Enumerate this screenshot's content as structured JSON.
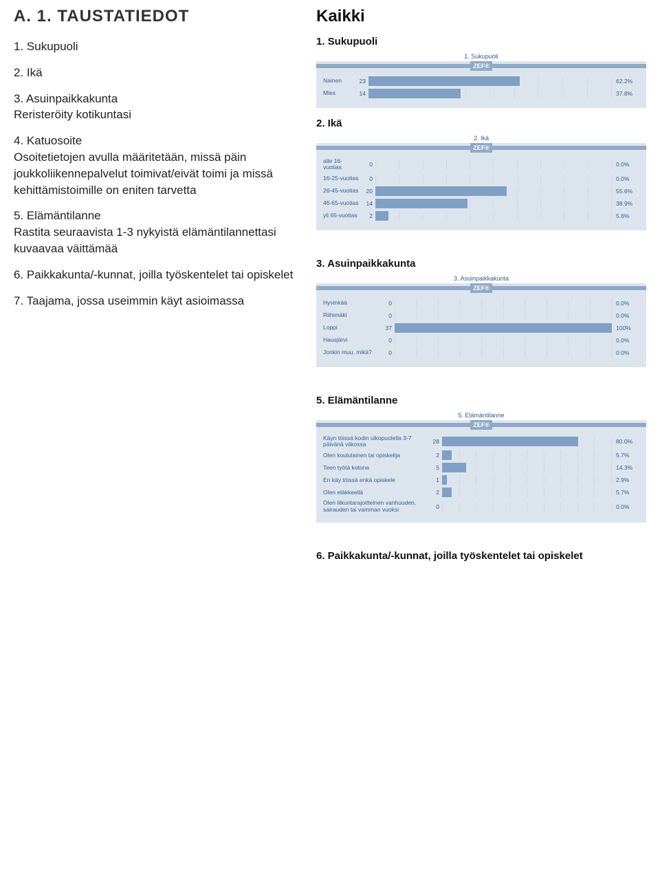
{
  "left": {
    "heading": "A. 1. TAUSTATIEDOT",
    "items": [
      "1. Sukupuoli",
      "2. Ikä",
      "3. Asuinpaikkakunta",
      "Reristeröity kotikuntasi",
      "4. Katuosoite",
      "Osoitetietojen avulla määritetään, missä päin joukkoliikennepalvelut toimivat/eivät toimi ja missä kehittämistoimille on eniten tarvetta",
      "5. Elämäntilanne",
      "Rastita seuraavista 1-3 nykyistä elämäntilannettasi kuvaavaa väittämää",
      "6. Paikkakunta/-kunnat, joilla työskentelet tai opiskelet",
      "7. Taajama, jossa useimmin käyt asioimassa"
    ]
  },
  "right": {
    "kaikki": "Kaikki",
    "zef": "ZEF®",
    "charts": [
      {
        "heading": "1. Sukupuoli",
        "small_title": "1. Sukupuoli",
        "cls": "chart1",
        "rows": [
          {
            "label": "Nainen",
            "count": "23",
            "pct": 62.2,
            "pct_label": "62.2%"
          },
          {
            "label": "Mies",
            "count": "14",
            "pct": 37.8,
            "pct_label": "37.8%"
          }
        ]
      },
      {
        "heading": "2. Ikä",
        "small_title": "2. Ikä",
        "cls": "chart2",
        "rows": [
          {
            "label": "alle 16-vuotias",
            "count": "0",
            "pct": 0,
            "pct_label": "0.0%"
          },
          {
            "label": "16-25-vuotias",
            "count": "0",
            "pct": 0,
            "pct_label": "0.0%"
          },
          {
            "label": "26-45-vuotias",
            "count": "20",
            "pct": 55.6,
            "pct_label": "55.6%"
          },
          {
            "label": "46-65-vuotias",
            "count": "14",
            "pct": 38.9,
            "pct_label": "38.9%"
          },
          {
            "label": "yli 65-vuotias",
            "count": "2",
            "pct": 5.6,
            "pct_label": "5.6%"
          }
        ]
      },
      {
        "heading": "3. Asuinpaikkakunta",
        "small_title": "3. Asuinpaikkakunta",
        "cls": "chart3",
        "rows": [
          {
            "label": "Hyvinkää",
            "count": "0",
            "pct": 0,
            "pct_label": "0.0%"
          },
          {
            "label": "Riihimäki",
            "count": "0",
            "pct": 0,
            "pct_label": "0.0%"
          },
          {
            "label": "Loppi",
            "count": "37",
            "pct": 100,
            "pct_label": "100%"
          },
          {
            "label": "Hausjärvi",
            "count": "0",
            "pct": 0,
            "pct_label": "0.0%"
          },
          {
            "label": "Jonkin muu, mikä?",
            "count": "0",
            "pct": 0,
            "pct_label": "0.0%"
          }
        ]
      },
      {
        "heading": "5. Elämäntilanne",
        "small_title": "5. Elämäntilanne",
        "cls": "chart5",
        "rows": [
          {
            "label": "Käyn töissä kodin ulkopuolella 3-7 päivänä viikossa",
            "count": "28",
            "pct": 80.0,
            "pct_label": "80.0%"
          },
          {
            "label": "Olen koululainen tai opiskelija",
            "count": "2",
            "pct": 5.7,
            "pct_label": "5.7%"
          },
          {
            "label": "Teen työtä kotona",
            "count": "5",
            "pct": 14.3,
            "pct_label": "14.3%"
          },
          {
            "label": "En käy töissä enkä opiskele",
            "count": "1",
            "pct": 2.9,
            "pct_label": "2.9%"
          },
          {
            "label": "Olen eläkkeellä",
            "count": "2",
            "pct": 5.7,
            "pct_label": "5.7%"
          },
          {
            "label": "Olen liikuntarajoitteinen vanhuuden, sairauden tai vamman vuoksi",
            "count": "0",
            "pct": 0,
            "pct_label": "0.0%"
          }
        ]
      }
    ],
    "footer_heading": "6. Paikkakunta/-kunnat, joilla työskentelet tai opiskelet"
  },
  "style": {
    "bar_color": "#7fa0c4",
    "chart_bg": "#dce5ee",
    "grid_color": "#cfd9e4",
    "text_color": "#3a5a8a"
  }
}
